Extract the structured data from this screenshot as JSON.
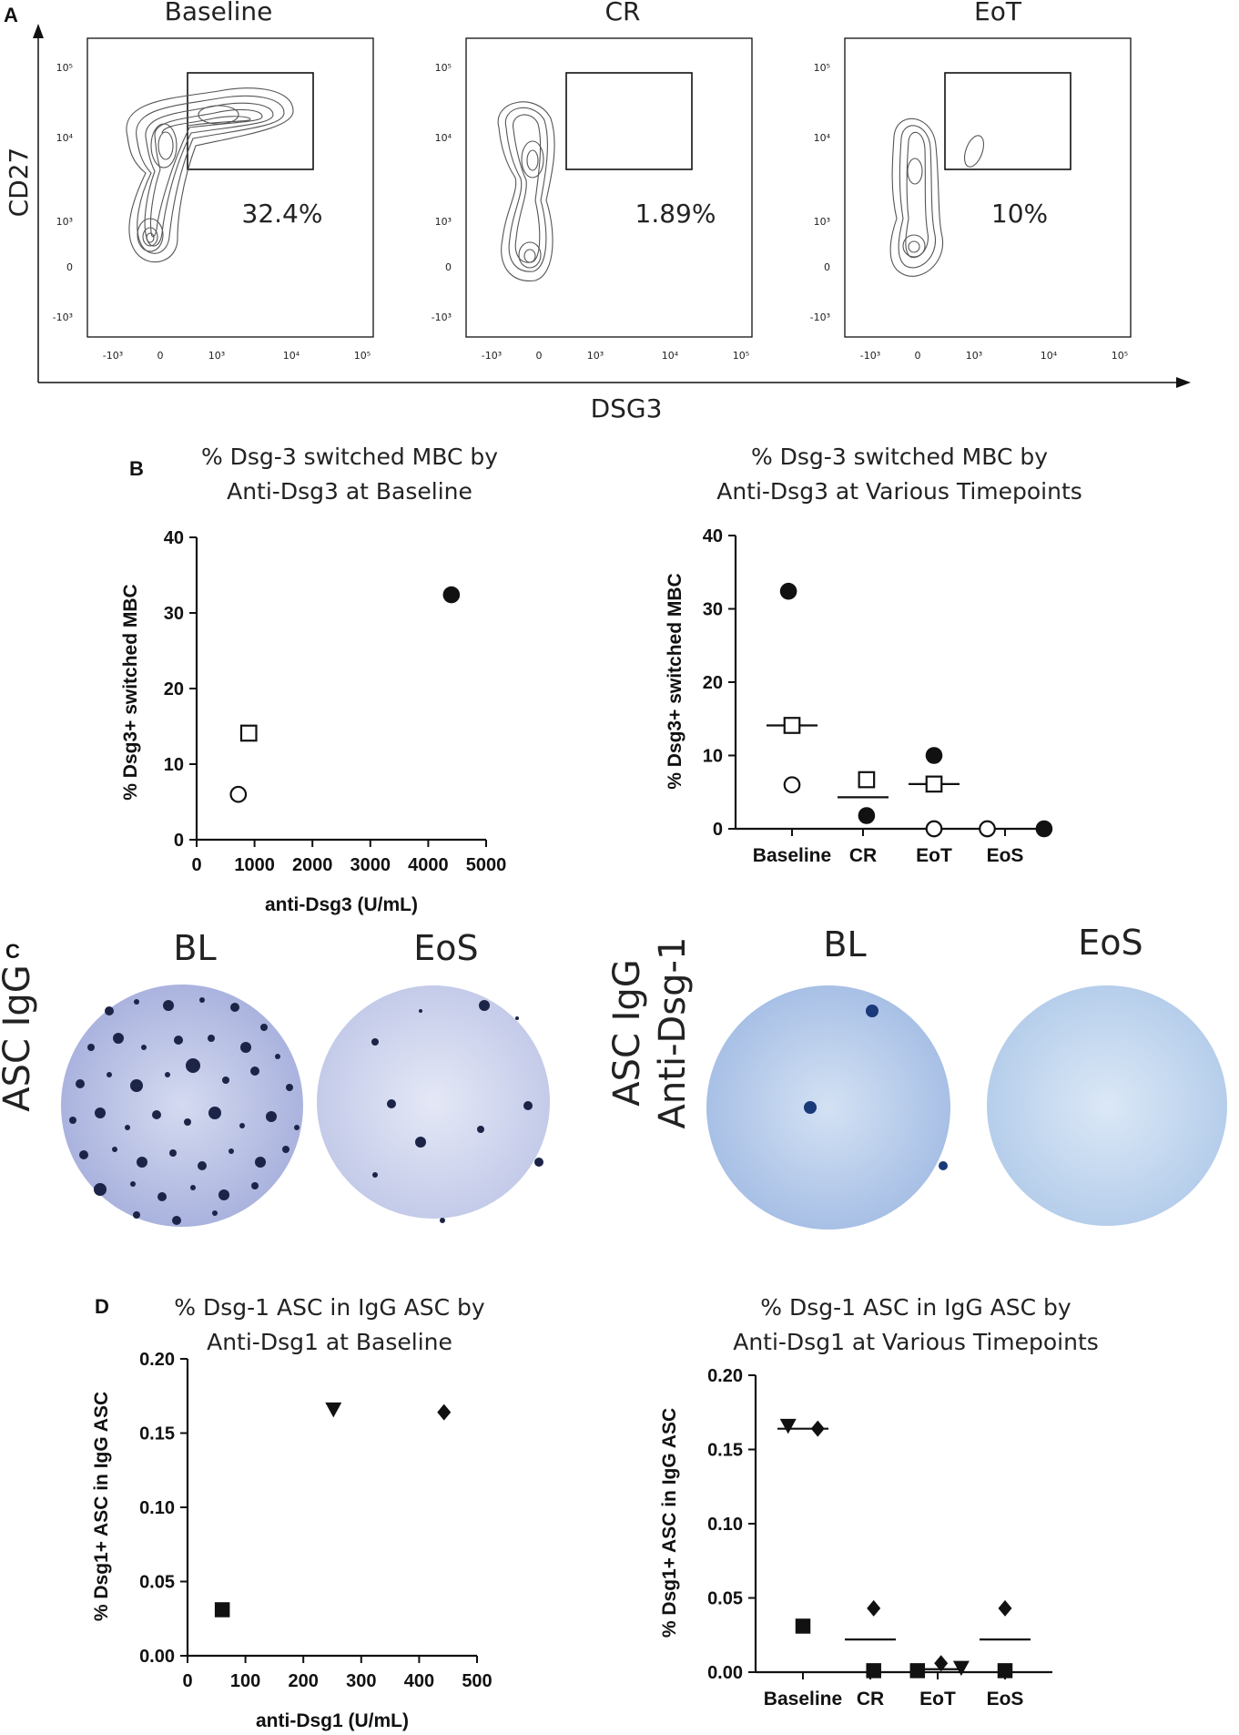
{
  "panel_letters": {
    "a": "A",
    "b": "B",
    "c": "C",
    "d": "D"
  },
  "panel_a": {
    "y_axis_label": "CD27",
    "x_axis_label": "DSG3",
    "y_ticks": [
      "10⁵",
      "10⁴",
      "10³",
      "0",
      "-10³"
    ],
    "x_ticks": [
      "-10³",
      "0",
      "10³",
      "10⁴",
      "10⁵"
    ],
    "plots": [
      {
        "title": "Baseline",
        "gate_pct": "32.4%"
      },
      {
        "title": "CR",
        "gate_pct": "1.89%"
      },
      {
        "title": "EoT",
        "gate_pct": "10%"
      }
    ]
  },
  "panel_c": {
    "col_left_1": "BL",
    "col_left_2": "EoS",
    "col_right_1": "BL",
    "col_right_2": "EoS",
    "row_left": "ASC IgG",
    "row_right_1": "ASC IgG",
    "row_right_2": "Anti-Dsg-1"
  },
  "chart_data": [
    {
      "id": "b1",
      "type": "scatter",
      "title_line1": "% Dsg-3 switched MBC by",
      "title_line2": "Anti-Dsg3 at Baseline",
      "xlabel": "anti-Dsg3 (U/mL)",
      "ylabel": "% Dsg3+ switched  MBC",
      "xlim": [
        0,
        5000
      ],
      "ylim": [
        0,
        40
      ],
      "x_ticks": [
        "0",
        "1000",
        "2000",
        "3000",
        "4000",
        "5000"
      ],
      "y_ticks": [
        "0",
        "10",
        "20",
        "30",
        "40"
      ],
      "points": [
        {
          "x": 4400,
          "y": 32.4,
          "marker": "filled-circle"
        },
        {
          "x": 900,
          "y": 14.1,
          "marker": "open-square"
        },
        {
          "x": 720,
          "y": 6.0,
          "marker": "open-circle"
        }
      ]
    },
    {
      "id": "b2",
      "type": "scatter",
      "title_line1": "% Dsg-3 switched MBC by",
      "title_line2": "Anti-Dsg3 at Various Timepoints",
      "xlabel": "",
      "ylabel": "% Dsg3+ switched  MBC",
      "ylim": [
        0,
        40
      ],
      "categories": [
        "Baseline",
        "CR",
        "EoT",
        "EoS"
      ],
      "y_ticks": [
        "0",
        "10",
        "20",
        "30",
        "40"
      ],
      "points": [
        {
          "cat": 0,
          "dx": -0.05,
          "y": 32.4,
          "marker": "filled-circle"
        },
        {
          "cat": 0,
          "dx": 0,
          "y": 14.1,
          "marker": "open-square"
        },
        {
          "cat": 0,
          "dx": 0,
          "y": 6.0,
          "marker": "open-circle"
        },
        {
          "cat": 1,
          "dx": 0.05,
          "y": 6.7,
          "marker": "open-square"
        },
        {
          "cat": 1,
          "dx": 0.05,
          "y": 1.8,
          "marker": "filled-circle"
        },
        {
          "cat": 2,
          "dx": 0,
          "y": 10.0,
          "marker": "filled-circle"
        },
        {
          "cat": 2,
          "dx": 0,
          "y": 6.1,
          "marker": "open-square"
        },
        {
          "cat": 2,
          "dx": 0,
          "y": 0,
          "marker": "open-circle"
        },
        {
          "cat": 3,
          "dx": -0.25,
          "y": 0,
          "marker": "open-circle"
        },
        {
          "cat": 3,
          "dx": 0.55,
          "y": 0,
          "marker": "filled-circle"
        }
      ],
      "means": [
        {
          "cat": 0,
          "y": 14.1
        },
        {
          "cat": 1,
          "y": 4.3
        },
        {
          "cat": 2,
          "y": 6.1
        }
      ]
    },
    {
      "id": "d1",
      "type": "scatter",
      "title_line1": "% Dsg-1 ASC in IgG ASC by",
      "title_line2": "Anti-Dsg1 at Baseline",
      "xlabel": "anti-Dsg1 (U/mL)",
      "ylabel": "% Dsg1+ ASC in IgG ASC",
      "xlim": [
        0,
        500
      ],
      "ylim": [
        0,
        0.2
      ],
      "x_ticks": [
        "0",
        "100",
        "200",
        "300",
        "400",
        "500"
      ],
      "y_ticks": [
        "0.00",
        "0.05",
        "0.10",
        "0.15",
        "0.20"
      ],
      "points": [
        {
          "x": 60,
          "y": 0.031,
          "marker": "filled-square"
        },
        {
          "x": 252,
          "y": 0.166,
          "marker": "filled-triangle-down"
        },
        {
          "x": 443,
          "y": 0.164,
          "marker": "filled-diamond"
        }
      ]
    },
    {
      "id": "d2",
      "type": "scatter",
      "title_line1": "% Dsg-1 ASC in IgG ASC by",
      "title_line2": "Anti-Dsg1 at Various Timepoints",
      "xlabel": "",
      "ylabel": "% Dsg1+ ASC in IgG ASC",
      "ylim": [
        0,
        0.2
      ],
      "categories": [
        "Baseline",
        "CR",
        "EoT",
        "EoS"
      ],
      "y_ticks": [
        "0.00",
        "0.05",
        "0.10",
        "0.15",
        "0.20"
      ],
      "points": [
        {
          "cat": 0,
          "dx": -0.22,
          "y": 0.166,
          "marker": "filled-triangle-down"
        },
        {
          "cat": 0,
          "dx": 0.22,
          "y": 0.164,
          "marker": "filled-diamond"
        },
        {
          "cat": 0,
          "dx": 0,
          "y": 0.031,
          "marker": "filled-square"
        },
        {
          "cat": 1,
          "dx": 0.05,
          "y": 0.043,
          "marker": "filled-diamond"
        },
        {
          "cat": 1,
          "dx": 0.05,
          "y": 0.001,
          "marker": "filled-square"
        },
        {
          "cat": 2,
          "dx": -0.3,
          "y": 0.001,
          "marker": "filled-square"
        },
        {
          "cat": 2,
          "dx": 0.05,
          "y": 0.006,
          "marker": "filled-diamond"
        },
        {
          "cat": 2,
          "dx": 0.35,
          "y": 0.003,
          "marker": "filled-triangle-down"
        },
        {
          "cat": 3,
          "dx": 0,
          "y": 0.043,
          "marker": "filled-diamond"
        },
        {
          "cat": 3,
          "dx": 0,
          "y": 0.001,
          "marker": "filled-square"
        }
      ],
      "means": [
        {
          "cat": 0,
          "y": 0.164
        },
        {
          "cat": 1,
          "y": 0.022
        },
        {
          "cat": 2,
          "y": 0.002
        },
        {
          "cat": 3,
          "y": 0.022
        }
      ]
    }
  ]
}
